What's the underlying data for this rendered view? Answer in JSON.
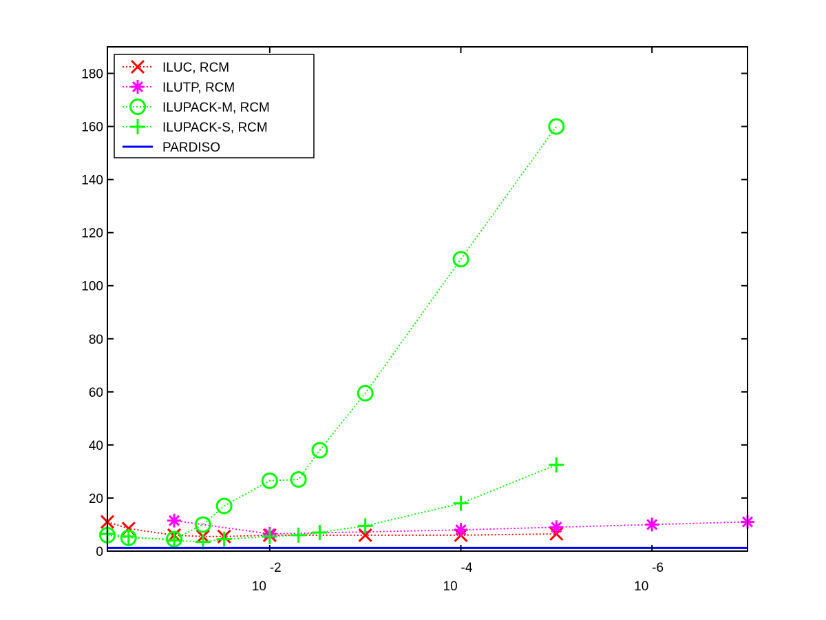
{
  "chart_data": {
    "type": "line",
    "title": "",
    "xlabel": "",
    "ylabel": "",
    "x_scale": "log",
    "x_reversed": true,
    "xlim": [
      0.5,
      1e-07
    ],
    "ylim": [
      0,
      190
    ],
    "y_ticks": [
      0,
      20,
      40,
      60,
      80,
      100,
      120,
      140,
      160,
      180
    ],
    "x_ticks": [
      {
        "value": 0.01,
        "base": "10",
        "exponent": "-2"
      },
      {
        "value": 0.0001,
        "base": "10",
        "exponent": "-4"
      },
      {
        "value": 1e-06,
        "base": "10",
        "exponent": "-6"
      }
    ],
    "grid": false,
    "legend_position": "top-left",
    "series": [
      {
        "name": "ILUC, RCM",
        "color": "#ff0000",
        "marker": "x",
        "line_style": "dotted",
        "x": [
          0.5,
          0.3,
          0.1,
          0.05,
          0.03,
          0.01,
          0.001,
          0.0001,
          1e-05
        ],
        "y": [
          11,
          8.5,
          6,
          5.5,
          5.5,
          6,
          6,
          6,
          6.5
        ]
      },
      {
        "name": "ILUTP, RCM",
        "color": "#ff00ff",
        "marker": "asterisk",
        "line_style": "dotted",
        "x": [
          0.1,
          0.01,
          0.0001,
          1e-05,
          1e-06,
          1e-07
        ],
        "y": [
          11.5,
          6.5,
          8,
          9,
          10,
          11
        ]
      },
      {
        "name": "ILUPACK-M, RCM",
        "color": "#00ff00",
        "marker": "circle",
        "line_style": "dotted",
        "x": [
          0.5,
          0.3,
          0.1,
          0.05,
          0.03,
          0.01,
          0.005,
          0.003,
          0.001,
          0.0001,
          1e-05
        ],
        "y": [
          6,
          5,
          4.5,
          10,
          17,
          26.5,
          27,
          38,
          59.5,
          110,
          160
        ]
      },
      {
        "name": "ILUPACK-S, RCM",
        "color": "#00ff00",
        "marker": "plus",
        "line_style": "dotted",
        "x": [
          0.5,
          0.3,
          0.1,
          0.05,
          0.03,
          0.01,
          0.005,
          0.003,
          0.001,
          0.0001,
          1e-05
        ],
        "y": [
          6.5,
          5.5,
          4,
          3.5,
          4.5,
          5.5,
          6,
          7,
          9.5,
          18,
          32.5
        ]
      },
      {
        "name": "PARDISO",
        "color": "#0000ff",
        "marker": "none",
        "line_style": "solid",
        "x": [
          0.5,
          1e-07
        ],
        "y": [
          1.2,
          1.2
        ]
      }
    ]
  }
}
